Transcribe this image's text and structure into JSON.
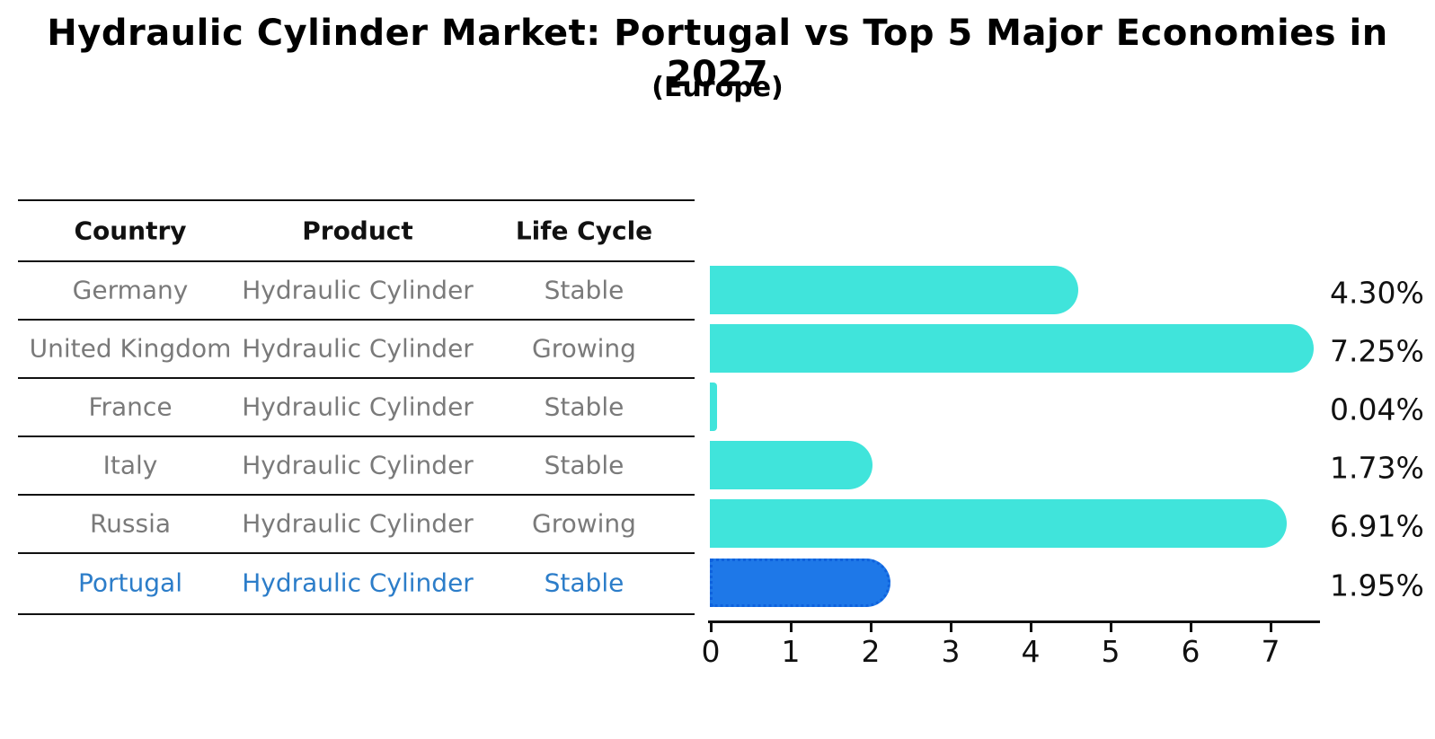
{
  "chart_data": {
    "type": "bar",
    "orientation": "horizontal",
    "title": "Hydraulic Cylinder Market: Portugal vs Top 5 Major Economies in 2027",
    "subtitle": "(Europe)",
    "categories": [
      "Germany",
      "United Kingdom",
      "France",
      "Italy",
      "Russia",
      "Portugal"
    ],
    "values": [
      4.3,
      7.25,
      0.04,
      1.73,
      6.91,
      1.95
    ],
    "value_labels": [
      "4.30%",
      "7.25%",
      "0.04%",
      "1.73%",
      "6.91%",
      "1.95%"
    ],
    "xlabel": "",
    "ylabel": "",
    "xlim": [
      0,
      7.6
    ],
    "xticks": [
      0,
      1,
      2,
      3,
      4,
      5,
      6,
      7
    ],
    "grid": false,
    "legend": "none",
    "bar_color": "#40e4db",
    "highlight_bar_color": "#1e78e8",
    "highlight_index": 5
  },
  "table": {
    "headers": [
      "Country",
      "Product",
      "Life Cycle"
    ],
    "rows": [
      {
        "country": "Germany",
        "product": "Hydraulic Cylinder",
        "life_cycle": "Stable"
      },
      {
        "country": "United Kingdom",
        "product": "Hydraulic Cylinder",
        "life_cycle": "Growing"
      },
      {
        "country": "France",
        "product": "Hydraulic Cylinder",
        "life_cycle": "Stable"
      },
      {
        "country": "Italy",
        "product": "Hydraulic Cylinder",
        "life_cycle": "Stable"
      },
      {
        "country": "Russia",
        "product": "Hydraulic Cylinder",
        "life_cycle": "Growing"
      },
      {
        "country": "Portugal",
        "product": "Hydraulic Cylinder",
        "life_cycle": "Stable"
      }
    ],
    "highlight_row_index": 5,
    "highlight_text_color": "#2c7dc9",
    "row_text_color": "#7a7a7a"
  }
}
